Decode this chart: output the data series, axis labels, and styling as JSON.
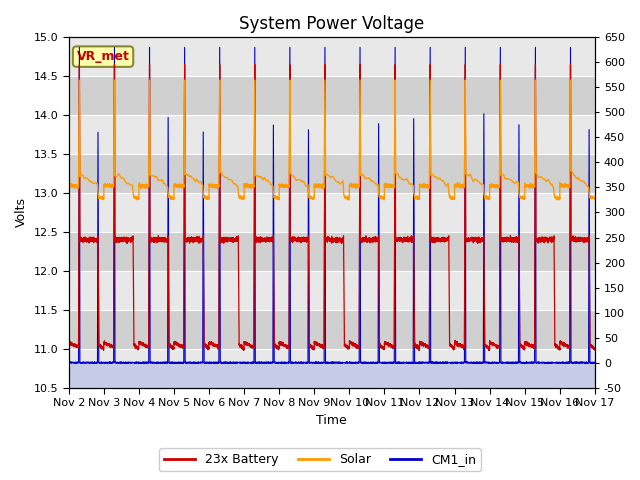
{
  "title": "System Power Voltage",
  "xlabel": "Time",
  "ylabel_left": "Volts",
  "ylim_left": [
    10.5,
    15.0
  ],
  "ylim_right": [
    -50,
    650
  ],
  "yticks_left": [
    10.5,
    11.0,
    11.5,
    12.0,
    12.5,
    13.0,
    13.5,
    14.0,
    14.5,
    15.0
  ],
  "yticks_right": [
    -50,
    0,
    50,
    100,
    150,
    200,
    250,
    300,
    350,
    400,
    450,
    500,
    550,
    600,
    650
  ],
  "xlim": [
    0,
    15
  ],
  "xtick_labels": [
    "Nov 2",
    "Nov 3",
    "Nov 4",
    "Nov 5",
    "Nov 6",
    "Nov 7",
    "Nov 8",
    "Nov 9",
    "Nov 10",
    "Nov 11",
    "Nov 12",
    "Nov 13",
    "Nov 14",
    "Nov 15",
    "Nov 16",
    "Nov 17"
  ],
  "xtick_positions": [
    0,
    1,
    2,
    3,
    4,
    5,
    6,
    7,
    8,
    9,
    10,
    11,
    12,
    13,
    14,
    15
  ],
  "color_battery": "#cc0000",
  "color_solar": "#ff9900",
  "color_cm1": "#0000cc",
  "color_cm1_fill": "#b0b8e8",
  "legend_labels": [
    "23x Battery",
    "Solar",
    "CM1_in"
  ],
  "vr_met_label": "VR_met",
  "vr_met_box_color": "#ffffaa",
  "vr_met_text_color": "#cc0000",
  "background_color": "#ffffff",
  "plot_bg_color": "#d8d8d8",
  "grid_color": "#ffffff",
  "title_fontsize": 12,
  "axis_fontsize": 9,
  "tick_fontsize": 8,
  "n_days": 15,
  "pts_per_day": 500
}
